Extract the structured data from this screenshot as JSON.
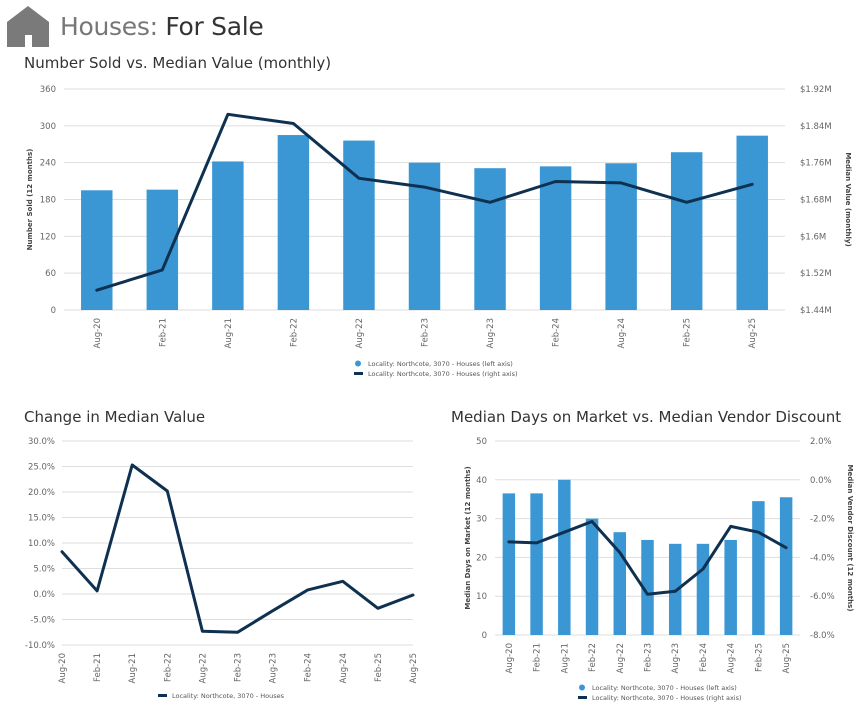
{
  "header": {
    "title_part1": "Houses:",
    "title_part2": "For Sale",
    "icon": "house-icon"
  },
  "colors": {
    "bar": "#3a97d4",
    "line": "#0e3151",
    "grid": "#dedede",
    "icon": "#7a7a7a"
  },
  "chart_data": [
    {
      "id": "sold_vs_value",
      "type": "bar",
      "title": "Number Sold vs. Median Value (monthly)",
      "categories": [
        "Aug-20",
        "Feb-21",
        "Aug-21",
        "Feb-22",
        "Aug-22",
        "Feb-23",
        "Aug-23",
        "Feb-24",
        "Aug-24",
        "Feb-25",
        "Aug-25"
      ],
      "ylabel": "Number Sold (12 months)",
      "y2label": "Median Value (monthly)",
      "ylim": [
        0,
        360
      ],
      "yticks": [
        0,
        60,
        120,
        180,
        240,
        300,
        360
      ],
      "ytick_labels": [
        "0",
        "60",
        "120",
        "180",
        "240",
        "300",
        "360"
      ],
      "y2lim": [
        1.44,
        1.92
      ],
      "y2ticks": [
        1.44,
        1.52,
        1.6,
        1.68,
        1.76,
        1.84,
        1.92
      ],
      "y2tick_labels": [
        "$1.44M",
        "$1.52M",
        "$1.6M",
        "$1.68M",
        "$1.76M",
        "$1.84M",
        "$1.92M"
      ],
      "series": [
        {
          "name": "Locality: Northcote, 3070 - Houses (left axis)",
          "kind": "bar",
          "axis": "left",
          "values": [
            195,
            196,
            242,
            285,
            276,
            240,
            231,
            234,
            239,
            257,
            284
          ]
        },
        {
          "name": "Locality: Northcote, 3070 - Houses (right axis)",
          "kind": "line",
          "axis": "right",
          "values": [
            1.483,
            1.527,
            1.865,
            1.845,
            1.726,
            1.707,
            1.674,
            1.719,
            1.716,
            1.674,
            1.713
          ]
        }
      ]
    },
    {
      "id": "change_median",
      "type": "line",
      "title": "Change in Median Value",
      "categories": [
        "Aug-20",
        "Feb-21",
        "Aug-21",
        "Feb-22",
        "Aug-22",
        "Feb-23",
        "Aug-23",
        "Feb-24",
        "Aug-24",
        "Feb-25",
        "Aug-25"
      ],
      "ylim": [
        -10,
        30
      ],
      "yticks": [
        -10,
        -5,
        0,
        5,
        10,
        15,
        20,
        25,
        30
      ],
      "ytick_labels": [
        "-10.0%",
        "-5.0%",
        "0.0%",
        "5.0%",
        "10.0%",
        "15.0%",
        "20.0%",
        "25.0%",
        "30.0%"
      ],
      "series": [
        {
          "name": "Locality: Northcote, 3070 - Houses",
          "kind": "line",
          "axis": "left",
          "values": [
            8.3,
            0.6,
            25.3,
            20.2,
            -7.3,
            -7.5,
            -3.3,
            0.8,
            2.5,
            -2.8,
            -0.2
          ]
        }
      ]
    },
    {
      "id": "days_discount",
      "type": "bar",
      "title": "Median Days on Market vs. Median Vendor Discount",
      "categories": [
        "Aug-20",
        "Feb-21",
        "Aug-21",
        "Feb-22",
        "Aug-22",
        "Feb-23",
        "Aug-23",
        "Feb-24",
        "Aug-24",
        "Feb-25",
        "Aug-25"
      ],
      "ylabel": "Median Days on Market (12 months)",
      "y2label": "Median Vendor Discount (12 months)",
      "ylim": [
        0,
        50
      ],
      "yticks": [
        0,
        10,
        20,
        30,
        40,
        50
      ],
      "ytick_labels": [
        "0",
        "10",
        "20",
        "30",
        "40",
        "50"
      ],
      "y2lim": [
        -8,
        2
      ],
      "y2ticks": [
        -8,
        -6,
        -4,
        -2,
        0,
        2
      ],
      "y2tick_labels": [
        "-8.0%",
        "-6.0%",
        "-4.0%",
        "-2.0%",
        "0.0%",
        "2.0%"
      ],
      "series": [
        {
          "name": "Locality: Northcote, 3070 - Houses (left axis)",
          "kind": "bar",
          "axis": "left",
          "values": [
            36.5,
            36.5,
            40,
            30,
            26.5,
            24.5,
            23.5,
            23.5,
            24.5,
            34.5,
            35.5
          ]
        },
        {
          "name": "Locality: Northcote, 3070 - Houses (right axis)",
          "kind": "line",
          "axis": "right",
          "values": [
            -3.2,
            -3.25,
            -2.7,
            -2.15,
            -3.75,
            -5.9,
            -5.75,
            -4.6,
            -2.4,
            -2.7,
            -3.5
          ]
        }
      ]
    }
  ]
}
